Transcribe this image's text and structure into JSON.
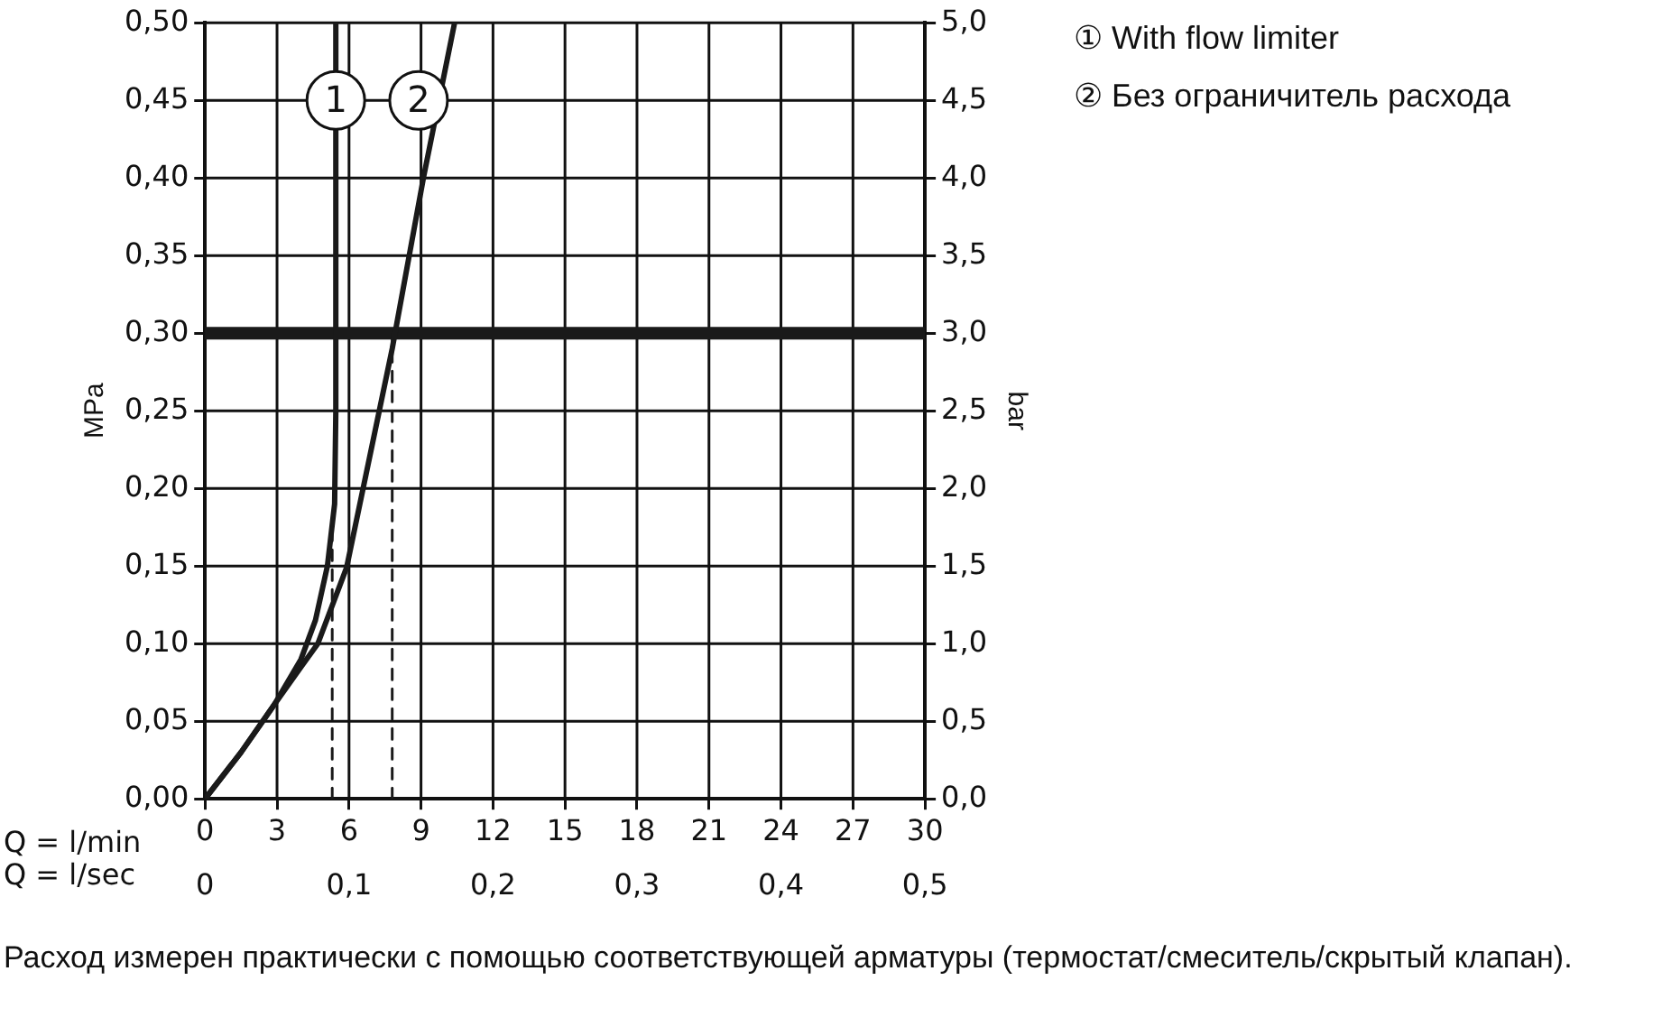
{
  "chart_data": {
    "type": "line",
    "xlabel": "Q = l/min",
    "x2label": "Q = l/sec",
    "ylabel": "MPa",
    "y2label": "bar",
    "xlim": [
      0,
      30
    ],
    "xticks": [
      0,
      3,
      6,
      9,
      12,
      15,
      18,
      21,
      24,
      27,
      30
    ],
    "x2lim": [
      0,
      0.5
    ],
    "x2ticks": [
      0,
      {
        "value": 0.1,
        "label": "0,1"
      },
      {
        "value": 0.2,
        "label": "0,2"
      },
      {
        "value": 0.3,
        "label": "0,3"
      },
      {
        "value": 0.4,
        "label": "0,4"
      },
      {
        "value": 0.5,
        "label": "0,5"
      }
    ],
    "ylim": [
      0,
      0.5
    ],
    "yticks": [
      {
        "value": 0,
        "label": "0,00"
      },
      {
        "value": 0.05,
        "label": "0,05"
      },
      {
        "value": 0.1,
        "label": "0,10"
      },
      {
        "value": 0.15,
        "label": "0,15"
      },
      {
        "value": 0.2,
        "label": "0,20"
      },
      {
        "value": 0.25,
        "label": "0,25"
      },
      {
        "value": 0.3,
        "label": "0,30"
      },
      {
        "value": 0.35,
        "label": "0,35"
      },
      {
        "value": 0.4,
        "label": "0,40"
      },
      {
        "value": 0.45,
        "label": "0,45"
      },
      {
        "value": 0.5,
        "label": "0,50"
      }
    ],
    "y2lim": [
      0,
      5
    ],
    "y2ticks": [
      {
        "value": 0,
        "label": "0,0"
      },
      {
        "value": 0.5,
        "label": "0,5"
      },
      {
        "value": 1,
        "label": "1,0"
      },
      {
        "value": 1.5,
        "label": "1,5"
      },
      {
        "value": 2,
        "label": "2,0"
      },
      {
        "value": 2.5,
        "label": "2,5"
      },
      {
        "value": 3,
        "label": "3,0"
      },
      {
        "value": 3.5,
        "label": "3,5"
      },
      {
        "value": 4,
        "label": "4,0"
      },
      {
        "value": 4.5,
        "label": "4,5"
      },
      {
        "value": 5,
        "label": "5,0"
      }
    ],
    "grid": true,
    "marker": "none",
    "series": [
      {
        "color": "#1a1a1a",
        "line_style": "solid",
        "x": [
          0,
          1.5,
          2.9,
          4.0,
          4.6,
          5.1,
          5.4,
          5.45,
          5.45
        ],
        "values": [
          0,
          0.03,
          0.061,
          0.09,
          0.115,
          0.15,
          0.19,
          0.25,
          0.5
        ]
      },
      {
        "color": "#1a1a1a",
        "line_style": "solid",
        "x": [
          0,
          1.5,
          2.9,
          4.0,
          4.7,
          5.9,
          7.8,
          9.1,
          10.4
        ],
        "values": [
          0,
          0.03,
          0.061,
          0.085,
          0.1,
          0.149,
          0.29,
          0.4,
          0.5
        ]
      },
      {
        "color": "#1a1a1a",
        "line_style": "dashed",
        "x": [
          5.3,
          5.3
        ],
        "values": [
          0,
          0.18
        ]
      },
      {
        "color": "#1a1a1a",
        "line_style": "dashed",
        "x": [
          7.8,
          7.8
        ],
        "values": [
          0,
          0.3
        ]
      }
    ],
    "ref_lines": [
      {
        "axis": "y",
        "value": 0.3,
        "color": "#1a1a1a"
      }
    ],
    "annotations": [
      {
        "text": "1",
        "x": 5.45,
        "y": 0.45
      },
      {
        "text": "2",
        "x": 8.9,
        "y": 0.45
      },
      "① With flow limiter",
      "② Без ограничитель расхода",
      "Расход измерен практически с помощью соответствующей арматуры (термостат/смеситель/скрытый клапан)."
    ]
  }
}
